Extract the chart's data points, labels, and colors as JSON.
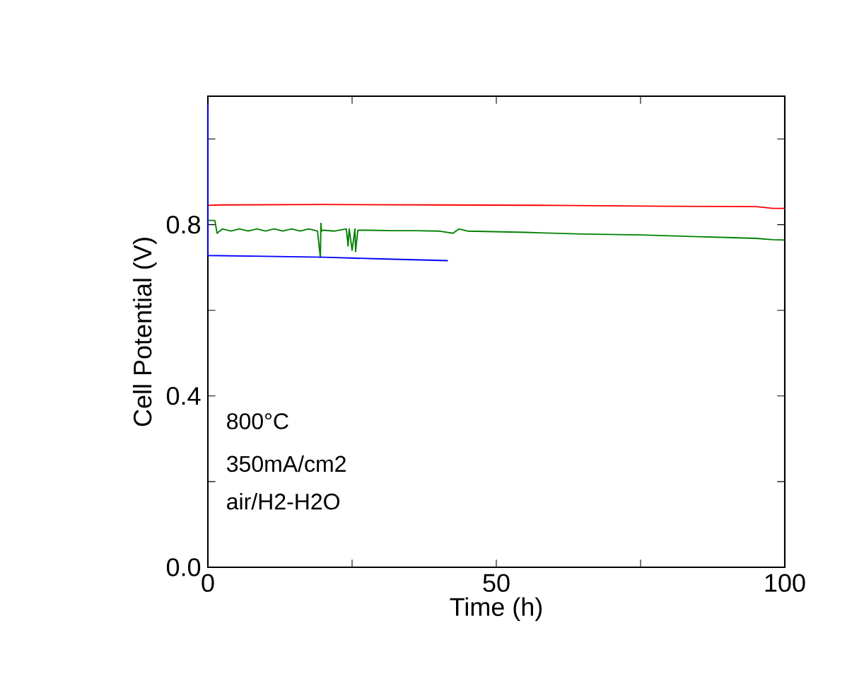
{
  "chart_data": {
    "type": "line",
    "xlabel": "Time (h)",
    "ylabel": "Cell Potential (V)",
    "xlim": [
      0,
      100
    ],
    "ylim": [
      0,
      1.1
    ],
    "xticks": [
      0,
      {
        "value": 25,
        "label": null
      },
      50,
      {
        "value": 75,
        "label": null
      },
      100
    ],
    "yticks": [
      {
        "value": 0,
        "label": "0.0"
      },
      {
        "value": 0.2,
        "label": null
      },
      {
        "value": 0.4,
        "label": "0.4"
      },
      {
        "value": 0.6,
        "label": null
      },
      {
        "value": 0.8,
        "label": "0.8"
      },
      {
        "value": 1.0,
        "label": null
      }
    ],
    "annotations": [
      "800°C",
      "350mA/cm2",
      "air/H2-H2O"
    ],
    "series": [
      {
        "color": "#ff0000",
        "x": [
          0,
          2,
          20,
          40,
          60,
          80,
          95,
          98,
          100
        ],
        "values": [
          0.845,
          0.846,
          0.847,
          0.846,
          0.845,
          0.843,
          0.842,
          0.838,
          0.838
        ]
      },
      {
        "color": "#008000",
        "x": [
          0,
          0.3,
          1.2,
          1.6,
          2.5,
          4,
          5.5,
          7,
          8.5,
          10,
          11.5,
          13,
          14.5,
          16,
          17.5,
          19,
          19.5,
          19.6,
          19.7,
          20,
          22,
          24,
          24.3,
          24.5,
          25,
          25.5,
          25.6,
          26,
          28,
          32,
          36,
          40,
          42.5,
          43.5,
          45,
          48,
          55,
          65,
          75,
          85,
          90,
          95,
          98,
          100
        ],
        "values": [
          0.81,
          0.81,
          0.81,
          0.78,
          0.79,
          0.785,
          0.79,
          0.785,
          0.79,
          0.785,
          0.79,
          0.785,
          0.79,
          0.785,
          0.79,
          0.785,
          0.724,
          0.803,
          0.785,
          0.787,
          0.785,
          0.79,
          0.75,
          0.79,
          0.74,
          0.79,
          0.737,
          0.787,
          0.787,
          0.786,
          0.786,
          0.785,
          0.78,
          0.79,
          0.785,
          0.784,
          0.782,
          0.778,
          0.776,
          0.772,
          0.77,
          0.768,
          0.765,
          0.764
        ]
      },
      {
        "color": "#0000ff",
        "x": [
          0,
          0,
          10,
          20,
          30,
          41.6
        ],
        "values": [
          1.08,
          0.728,
          0.726,
          0.724,
          0.72,
          0.716
        ]
      }
    ]
  }
}
